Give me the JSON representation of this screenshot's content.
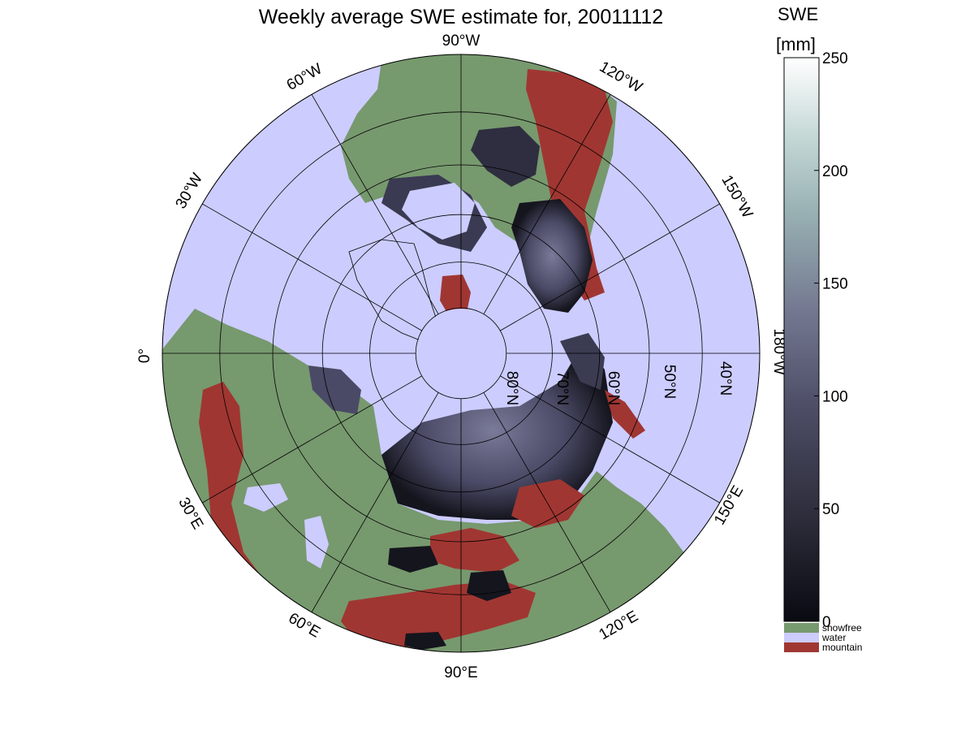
{
  "title": "Weekly average SWE estimate for, 20011112",
  "colorbar": {
    "header_line1": "SWE",
    "header_line2": "[mm]",
    "range": [
      0,
      250
    ],
    "ticks": [
      "0",
      "50",
      "100",
      "150",
      "200",
      "250"
    ],
    "tick_values": [
      0,
      50,
      100,
      150,
      200,
      250
    ]
  },
  "legend": [
    {
      "label": "snowfree",
      "color": "#77996e"
    },
    {
      "label": "water",
      "color": "#ccccff"
    },
    {
      "label": "mountain",
      "color": "#a03632"
    }
  ],
  "colors": {
    "water": "#ccccff",
    "snowfree": "#77996e",
    "mountain": "#a03632",
    "snow_low": "#0a0a12",
    "snow_high": "#ffffff"
  },
  "meridian_labels": {
    "top": "90°W",
    "m60w": "60°W",
    "m120w": "120°W",
    "m30w": "30°W",
    "m150w": "150°W",
    "left": "0°",
    "right": "180°W",
    "m30e": "30°E",
    "m150e": "150°E",
    "m60e": "60°E",
    "m120e": "120°E",
    "bottom": "90°E"
  },
  "parallel_labels": {
    "p80": "80°N",
    "p70": "70°N",
    "p60": "60°N",
    "p50": "50°N",
    "p40": "40°N"
  },
  "graticule": {
    "meridian_step_deg": 30,
    "parallels_deg": [
      80,
      70,
      60,
      50,
      40,
      30
    ]
  }
}
